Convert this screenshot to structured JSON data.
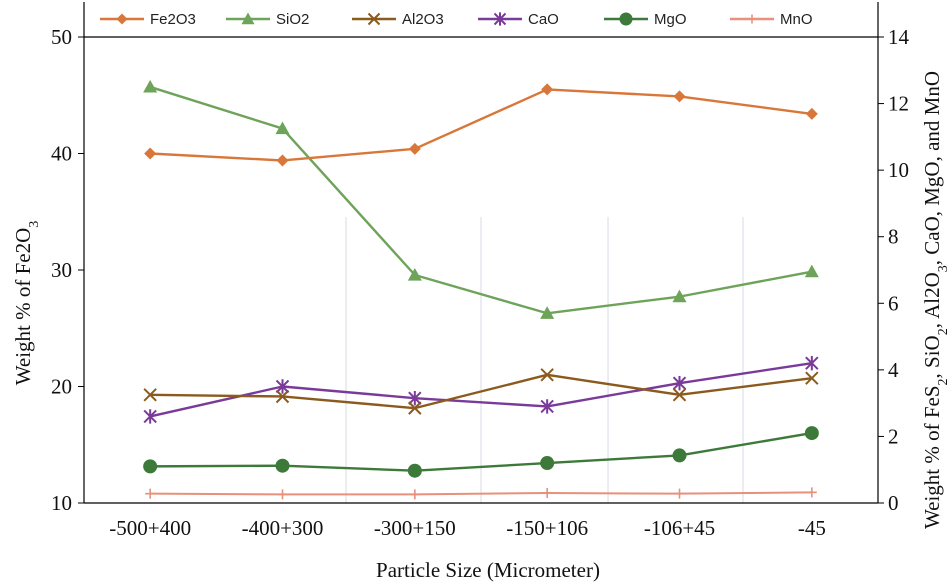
{
  "chart_data": {
    "type": "line",
    "title": "",
    "xlabel": "Particle Size (Micrometer)",
    "ylabel_left": "Weight % of Fe2O3",
    "ylabel_left_main": "Weight % of Fe2O",
    "ylabel_left_sub": "3",
    "ylabel_right": "Weight % of FeS2, SiO2, Al2O3, CaO, MgO, and MnO",
    "ylabel_right_parts": [
      {
        "text": "Weight % of FeS",
        "sub": false
      },
      {
        "text": "2",
        "sub": true
      },
      {
        "text": ", SiO",
        "sub": false
      },
      {
        "text": "2",
        "sub": true
      },
      {
        "text": ", Al2O",
        "sub": false
      },
      {
        "text": "3",
        "sub": true
      },
      {
        "text": ", CaO, MgO, and MnO",
        "sub": false
      }
    ],
    "categories": [
      "-500+400",
      "-400+300",
      "-300+150",
      "-150+106",
      "-106+45",
      "-45"
    ],
    "y_left": {
      "min": 10,
      "max": 50,
      "ticks": [
        10,
        20,
        30,
        40,
        50
      ]
    },
    "y_right": {
      "min": 0,
      "max": 14,
      "ticks": [
        0,
        2,
        4,
        6,
        8,
        10,
        12,
        14
      ]
    },
    "legend_position": "top",
    "series": [
      {
        "name": "Fe2O3",
        "axis": "left",
        "color": "#D9773A",
        "marker": "diamond",
        "values": [
          40.0,
          39.4,
          40.4,
          45.5,
          44.9,
          43.4
        ]
      },
      {
        "name": "SiO2",
        "axis": "right",
        "color": "#6EA35A",
        "marker": "triangle",
        "values": [
          12.5,
          11.25,
          6.85,
          5.7,
          6.2,
          6.95
        ]
      },
      {
        "name": "Al2O3",
        "axis": "right",
        "color": "#8B5A1E",
        "marker": "x",
        "values": [
          3.25,
          3.2,
          2.85,
          3.85,
          3.25,
          3.75
        ]
      },
      {
        "name": "CaO",
        "axis": "right",
        "color": "#7A3A9A",
        "marker": "asterisk",
        "values": [
          2.6,
          3.5,
          3.15,
          2.9,
          3.6,
          4.2
        ]
      },
      {
        "name": "MgO",
        "axis": "right",
        "color": "#3D7A3A",
        "marker": "circle",
        "values": [
          1.1,
          1.12,
          0.97,
          1.2,
          1.43,
          2.1
        ]
      },
      {
        "name": "MnO",
        "axis": "right",
        "color": "#E8907A",
        "marker": "plus",
        "values": [
          0.28,
          0.26,
          0.26,
          0.3,
          0.28,
          0.32
        ]
      }
    ]
  }
}
